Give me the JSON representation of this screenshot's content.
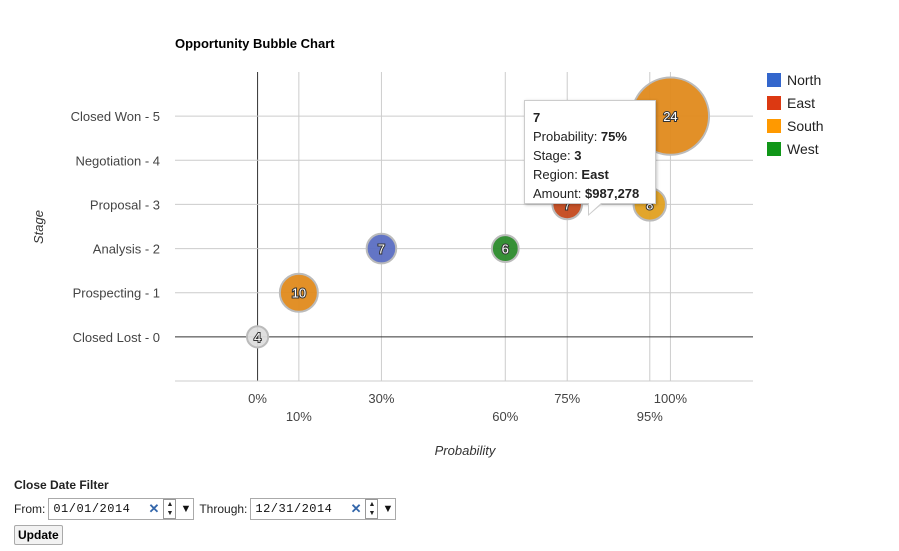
{
  "chart_data": {
    "type": "scatter",
    "title": "Opportunity Bubble Chart",
    "xlabel": "Probability",
    "ylabel": "Stage",
    "xlim": [
      -0.2,
      1.2
    ],
    "ylim": [
      -1,
      6
    ],
    "x_ticks": [
      {
        "value": 0,
        "label": "0%",
        "row": 0
      },
      {
        "value": 0.1,
        "label": "10%",
        "row": 1
      },
      {
        "value": 0.3,
        "label": "30%",
        "row": 0
      },
      {
        "value": 0.6,
        "label": "60%",
        "row": 1
      },
      {
        "value": 0.75,
        "label": "75%",
        "row": 0
      },
      {
        "value": 0.95,
        "label": "95%",
        "row": 1
      },
      {
        "value": 1.0,
        "label": "100%",
        "row": 0
      }
    ],
    "y_ticks": [
      {
        "value": 0,
        "label": "Closed Lost - 0"
      },
      {
        "value": 1,
        "label": "Prospecting - 1"
      },
      {
        "value": 2,
        "label": "Analysis - 2"
      },
      {
        "value": 3,
        "label": "Proposal - 3"
      },
      {
        "value": 4,
        "label": "Negotiation - 4"
      },
      {
        "value": 5,
        "label": "Closed Won - 5"
      }
    ],
    "legend": {
      "position": "right",
      "entries": [
        {
          "name": "North",
          "color": "#3366cc"
        },
        {
          "name": "East",
          "color": "#dc3912"
        },
        {
          "name": "South",
          "color": "#ff9900"
        },
        {
          "name": "West",
          "color": "#109618"
        }
      ]
    },
    "points": [
      {
        "label": "4",
        "x": 0,
        "y": 0,
        "region": "none",
        "color": "#dddddd",
        "size": 4
      },
      {
        "label": "10",
        "x": 0.1,
        "y": 1,
        "region": "South",
        "color": "#e08a1c",
        "size": 10
      },
      {
        "label": "7",
        "x": 0.3,
        "y": 2,
        "region": "North",
        "color": "#5b6ec2",
        "size": 7
      },
      {
        "label": "6",
        "x": 0.6,
        "y": 2,
        "region": "West",
        "color": "#2b8a2b",
        "size": 6
      },
      {
        "label": "7",
        "x": 0.75,
        "y": 3,
        "region": "East",
        "color": "#c4491c",
        "size": 7
      },
      {
        "label": "8",
        "x": 0.95,
        "y": 3,
        "region": "South",
        "color": "#e0a020",
        "size": 8
      },
      {
        "label": "24",
        "x": 1.0,
        "y": 5,
        "region": "South",
        "color": "#e08a1c",
        "size": 24
      }
    ]
  },
  "tooltip": {
    "title": "7",
    "probability_label": "Probability: ",
    "probability_value": "75%",
    "stage_label": "Stage: ",
    "stage_value": "3",
    "region_label": "Region: ",
    "region_value": "East",
    "amount_label": "Amount: ",
    "amount_value": "$987,278"
  },
  "filter": {
    "title": "Close Date Filter",
    "from_label": "From:",
    "from_value": "01/01/2014",
    "through_label": "Through:",
    "through_value": "12/31/2014",
    "update_label": "Update",
    "clear_icon": "x-icon",
    "spin_icon": "spinner-icon",
    "dropdown_icon": "dropdown-arrow-icon"
  }
}
